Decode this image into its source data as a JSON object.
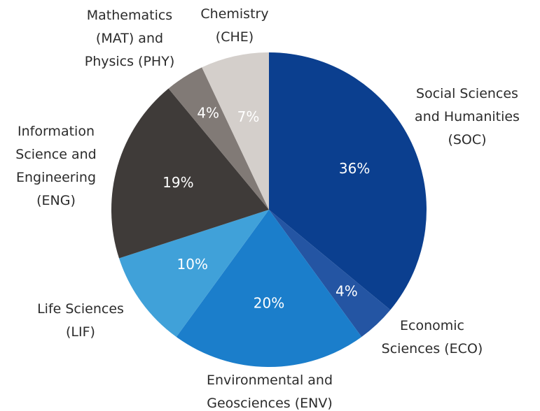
{
  "chart_data": {
    "type": "pie",
    "categories": [
      "Social Sciences and Humanities (SOC)",
      "Economic Sciences (ECO)",
      "Environmental and Geosciences (ENV)",
      "Life Sciences (LIF)",
      "Information Science and Engineering (ENG)",
      "Mathematics (MAT) and Physics (PHY)",
      "Chemistry (CHE)"
    ],
    "values": [
      36,
      4,
      20,
      10,
      19,
      4,
      7
    ],
    "value_labels": [
      "36%",
      "4%",
      "20%",
      "10%",
      "19%",
      "4%",
      "7%"
    ],
    "colors": [
      "#0b3f8f",
      "#2455a3",
      "#1b7ecb",
      "#40a1d9",
      "#3f3b39",
      "#817a76",
      "#d4cfcb"
    ]
  }
}
